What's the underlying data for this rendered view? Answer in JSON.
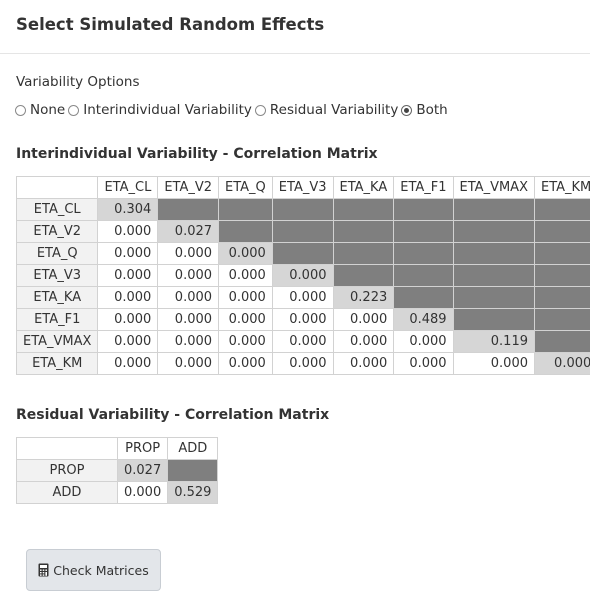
{
  "header": {
    "title": "Select Simulated Random Effects"
  },
  "variability": {
    "label": "Variability Options",
    "options": [
      {
        "label": "None",
        "checked": false
      },
      {
        "label": "Interindividual Variability",
        "checked": false
      },
      {
        "label": "Residual Variability",
        "checked": false
      },
      {
        "label": "Both",
        "checked": true
      }
    ]
  },
  "iiv": {
    "title": "Interindividual Variability - Correlation Matrix",
    "headers": [
      "ETA_CL",
      "ETA_V2",
      "ETA_Q",
      "ETA_V3",
      "ETA_KA",
      "ETA_F1",
      "ETA_VMAX",
      "ETA_KM"
    ],
    "rows": [
      {
        "label": "ETA_CL",
        "values": [
          "0.304"
        ]
      },
      {
        "label": "ETA_V2",
        "values": [
          "0.000",
          "0.027"
        ]
      },
      {
        "label": "ETA_Q",
        "values": [
          "0.000",
          "0.000",
          "0.000"
        ]
      },
      {
        "label": "ETA_V3",
        "values": [
          "0.000",
          "0.000",
          "0.000",
          "0.000"
        ]
      },
      {
        "label": "ETA_KA",
        "values": [
          "0.000",
          "0.000",
          "0.000",
          "0.000",
          "0.223"
        ]
      },
      {
        "label": "ETA_F1",
        "values": [
          "0.000",
          "0.000",
          "0.000",
          "0.000",
          "0.000",
          "0.489"
        ]
      },
      {
        "label": "ETA_VMAX",
        "values": [
          "0.000",
          "0.000",
          "0.000",
          "0.000",
          "0.000",
          "0.000",
          "0.119"
        ]
      },
      {
        "label": "ETA_KM",
        "values": [
          "0.000",
          "0.000",
          "0.000",
          "0.000",
          "0.000",
          "0.000",
          "0.000",
          "0.000"
        ]
      }
    ]
  },
  "residual": {
    "title": "Residual Variability - Correlation Matrix",
    "headers": [
      "PROP",
      "ADD"
    ],
    "rows": [
      {
        "label": "PROP",
        "values": [
          "0.027"
        ]
      },
      {
        "label": "ADD",
        "values": [
          "0.000",
          "0.529"
        ]
      }
    ]
  },
  "button": {
    "label": "Check Matrices",
    "icon": "calculator-icon"
  },
  "colors": {
    "upper": "#7f7f7f",
    "diagonal": "#d6d6d6",
    "label_bg": "#f2f2f2",
    "button_bg": "#e3e6ea"
  }
}
